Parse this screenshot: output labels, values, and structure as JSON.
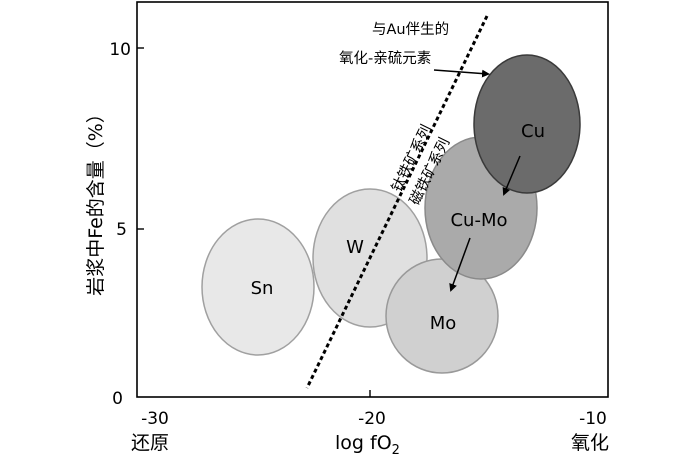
{
  "figure": {
    "ylabel": "岩浆中Fe的含量（%）",
    "xlabel_main": "log fO",
    "xlabel_sub": "2",
    "x_left_word": "还原",
    "x_right_word": "氧化",
    "x_ticks": [
      "-30",
      "-20",
      "-10"
    ],
    "y_ticks": [
      "0",
      "5",
      "10"
    ],
    "annotation_line1": "与Au伴生的",
    "annotation_line2": "氧化-亲硫元素",
    "series_ilmenite": "钛铁矿系列",
    "series_magnetite": "磁铁矿系列"
  },
  "fields": [
    {
      "label": "Sn",
      "fill": "#e8e8e8"
    },
    {
      "label": "W",
      "fill": "#e0e0e0"
    },
    {
      "label": "Mo",
      "fill": "#cfcfcf"
    },
    {
      "label": "Cu-Mo",
      "fill": "#a9a9a9"
    },
    {
      "label": "Cu",
      "fill": "#6b6b6b"
    }
  ],
  "colors": {
    "stroke": "#a0a0a0",
    "cu_stroke": "#404040",
    "axis": "#000000"
  }
}
